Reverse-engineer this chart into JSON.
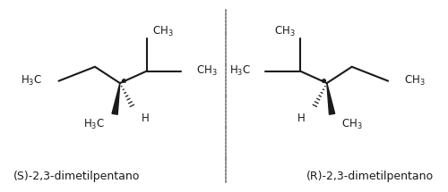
{
  "bg_color": "#ffffff",
  "line_color": "#1a1a1a",
  "label_color": "#1a1a1a",
  "dashed_line_color": "#666666",
  "title_S": "(S)-2,3-dimetilpentano",
  "title_R": "(R)-2,3-dimetilpentano",
  "title_fontsize": 9,
  "label_fontsize": 8.5
}
